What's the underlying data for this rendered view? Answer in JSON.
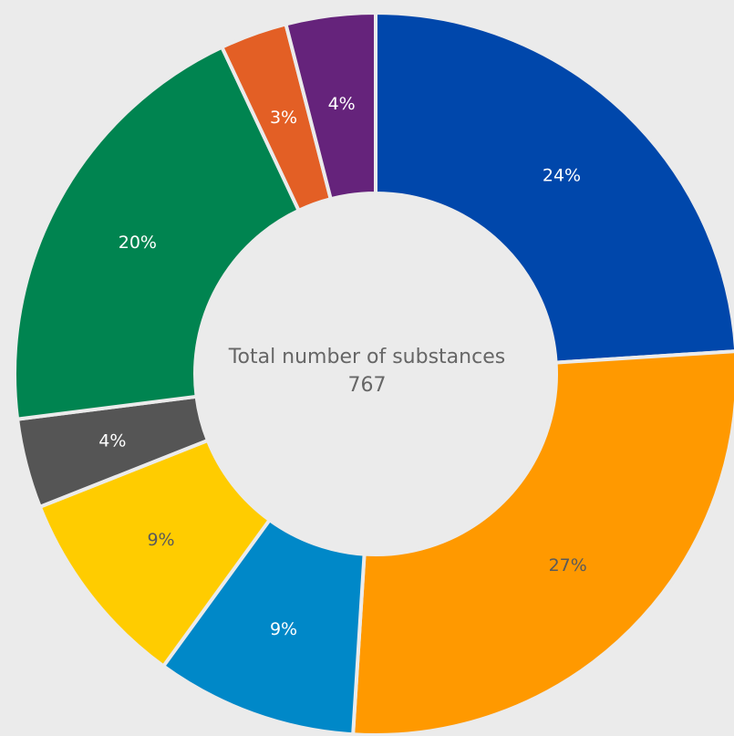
{
  "chart_data": {
    "type": "pie",
    "donut": true,
    "center_label": "Total number of substances",
    "center_value": "767",
    "slices": [
      {
        "value": 24,
        "label": "24%",
        "color": "#0047ab",
        "label_color": "#ffffff"
      },
      {
        "value": 27,
        "label": "27%",
        "color": "#ff9900",
        "label_color": "#5a5a5a"
      },
      {
        "value": 9,
        "label": "9%",
        "color": "#0088c8",
        "label_color": "#ffffff"
      },
      {
        "value": 9,
        "label": "9%",
        "color": "#ffcc00",
        "label_color": "#5a5a5a"
      },
      {
        "value": 4,
        "label": "4%",
        "color": "#555555",
        "label_color": "#ffffff"
      },
      {
        "value": 20,
        "label": "20%",
        "color": "#008450",
        "label_color": "#ffffff"
      },
      {
        "value": 3,
        "label": "3%",
        "color": "#e35f25",
        "label_color": "#ffffff"
      },
      {
        "value": 4,
        "label": "4%",
        "color": "#65237b",
        "label_color": "#ffffff"
      }
    ]
  }
}
